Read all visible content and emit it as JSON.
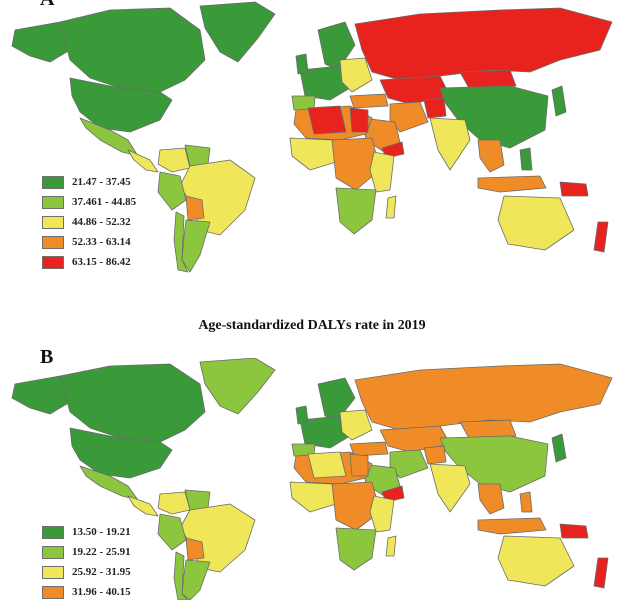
{
  "panel_a": {
    "label": "A",
    "legend": [
      {
        "range": "21.47 - 37.45",
        "color": "#3a9a3a"
      },
      {
        "range": "37.461 - 44.85",
        "color": "#8cc63f"
      },
      {
        "range": "44.86 - 52.32",
        "color": "#f0e65a"
      },
      {
        "range": "52.33 - 63.14",
        "color": "#f08c28"
      },
      {
        "range": "63.15 - 86.42",
        "color": "#e8231e"
      }
    ]
  },
  "panel_b": {
    "label": "B",
    "title": "Age-standardized DALYs rate in 2019",
    "legend": [
      {
        "range": "13.50 - 19.21",
        "color": "#3a9a3a"
      },
      {
        "range": "19.22 - 25.91",
        "color": "#8cc63f"
      },
      {
        "range": "25.92 - 31.95",
        "color": "#f0e65a"
      },
      {
        "range": "31.96 - 40.15",
        "color": "#f08c28"
      }
    ]
  },
  "map_colors": {
    "dark_green": "#3a9a3a",
    "light_green": "#8cc63f",
    "yellow": "#f0e65a",
    "orange": "#f08c28",
    "red": "#e8231e",
    "border": "#6b6b6b"
  }
}
